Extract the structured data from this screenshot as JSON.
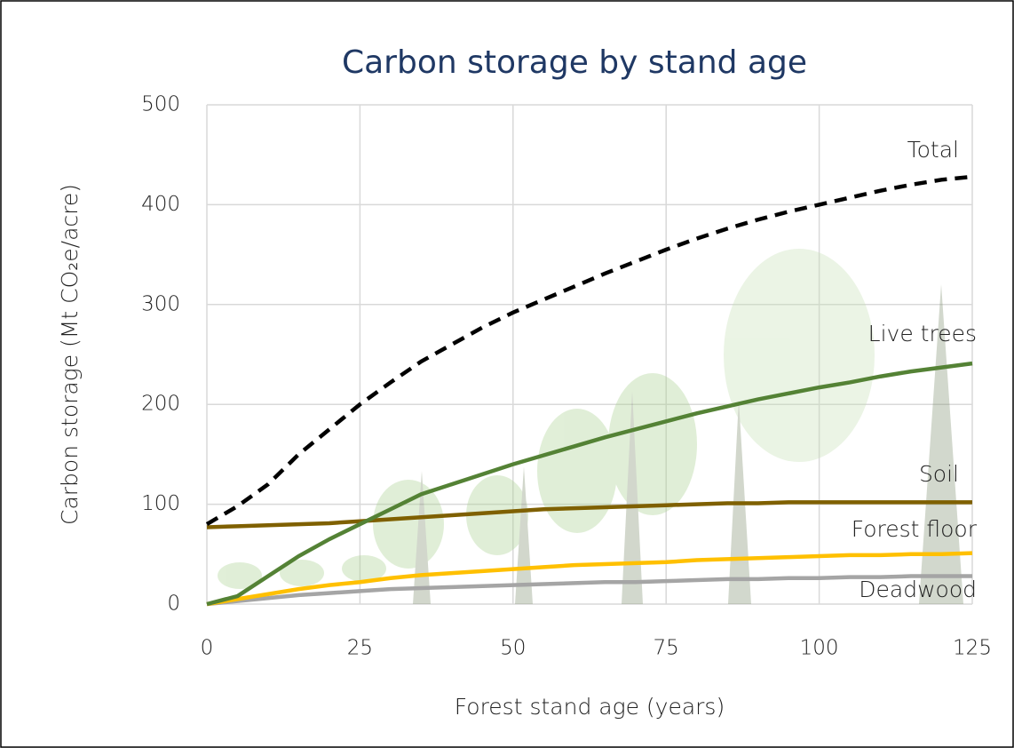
{
  "chart_data": {
    "type": "line",
    "title": "Carbon storage by stand age",
    "x_label": "Forest stand age (years)",
    "y_label": "Carbon storage (Mt CO₂e/acre)",
    "x": [
      0,
      5,
      10,
      15,
      20,
      25,
      30,
      35,
      40,
      45,
      50,
      55,
      60,
      65,
      70,
      75,
      80,
      85,
      90,
      95,
      100,
      105,
      110,
      115,
      120,
      125
    ],
    "xlim": [
      0,
      125
    ],
    "xticks": [
      0,
      25,
      50,
      75,
      100,
      125
    ],
    "ylim": [
      0,
      500
    ],
    "yticks": [
      0,
      100,
      200,
      300,
      400,
      500
    ],
    "grid": true,
    "series": [
      {
        "name": "Total",
        "color": "#000000",
        "dashed": true,
        "values": [
          80,
          98,
          120,
          150,
          175,
          200,
          222,
          243,
          260,
          277,
          292,
          305,
          318,
          331,
          343,
          355,
          366,
          376,
          385,
          393,
          400,
          407,
          414,
          420,
          425,
          428
        ]
      },
      {
        "name": "Live trees",
        "color": "#548235",
        "dashed": false,
        "values": [
          0,
          8,
          28,
          48,
          65,
          80,
          95,
          110,
          120,
          130,
          140,
          149,
          158,
          167,
          175,
          183,
          191,
          198,
          205,
          211,
          217,
          222,
          228,
          233,
          237,
          241
        ]
      },
      {
        "name": "Soil",
        "color": "#7f6000",
        "dashed": false,
        "values": [
          77,
          78,
          79,
          80,
          81,
          83,
          85,
          87,
          89,
          91,
          93,
          95,
          96,
          97,
          98,
          99,
          100,
          101,
          101,
          102,
          102,
          102,
          102,
          102,
          102,
          102
        ]
      },
      {
        "name": "Forest floor",
        "color": "#ffc000",
        "dashed": false,
        "values": [
          0,
          5,
          10,
          15,
          19,
          22,
          26,
          29,
          31,
          33,
          35,
          37,
          39,
          40,
          41,
          42,
          44,
          45,
          46,
          47,
          48,
          49,
          49,
          50,
          50,
          51
        ]
      },
      {
        "name": "Deadwood",
        "color": "#a5a5a5",
        "dashed": false,
        "values": [
          0,
          3,
          6,
          9,
          11,
          13,
          15,
          16,
          17,
          18,
          19,
          20,
          21,
          22,
          22,
          23,
          24,
          25,
          25,
          26,
          26,
          27,
          27,
          28,
          28,
          28
        ]
      }
    ]
  }
}
